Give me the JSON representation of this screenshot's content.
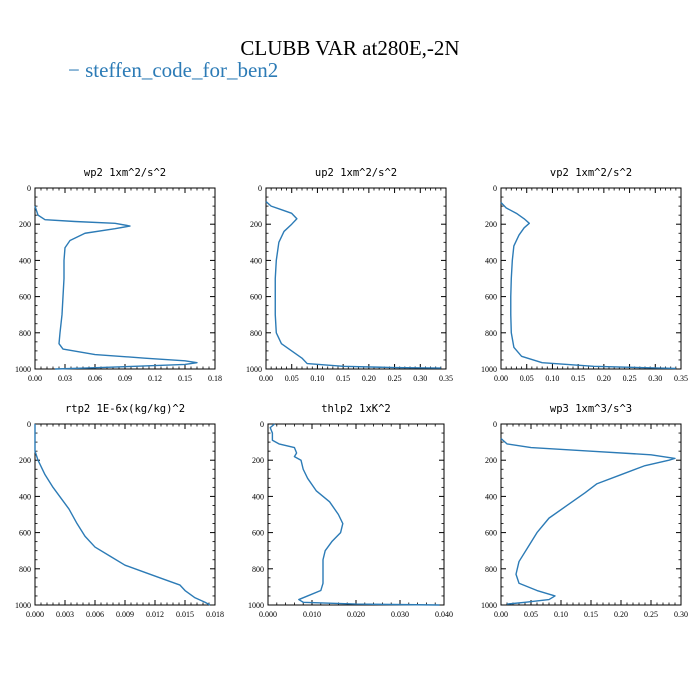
{
  "title": "CLUBB VAR at280E,-2N",
  "legend_label": "− steffen_code_for_ben2",
  "colors": {
    "series": "#2c7bb6",
    "axis": "#000000"
  },
  "chart_data": [
    {
      "type": "line",
      "title": "wp2   1xm^2/s^2",
      "series": [
        {
          "name": "steffen_code_for_ben2"
        }
      ],
      "xlim": [
        0,
        0.18
      ],
      "xticks": [
        "0.00",
        "0.03",
        "0.06",
        "0.09",
        "0.12",
        "0.15",
        "0.18"
      ],
      "ylim": [
        1000,
        0
      ],
      "yticks": [
        "0",
        "200",
        "400",
        "600",
        "800",
        "1000"
      ],
      "points": [
        [
          0.0,
          100
        ],
        [
          0.003,
          150
        ],
        [
          0.01,
          175
        ],
        [
          0.04,
          185
        ],
        [
          0.08,
          195
        ],
        [
          0.095,
          210
        ],
        [
          0.08,
          225
        ],
        [
          0.05,
          250
        ],
        [
          0.035,
          290
        ],
        [
          0.03,
          330
        ],
        [
          0.029,
          400
        ],
        [
          0.029,
          500
        ],
        [
          0.028,
          600
        ],
        [
          0.027,
          700
        ],
        [
          0.025,
          800
        ],
        [
          0.024,
          860
        ],
        [
          0.028,
          890
        ],
        [
          0.06,
          920
        ],
        [
          0.11,
          940
        ],
        [
          0.15,
          955
        ],
        [
          0.162,
          965
        ],
        [
          0.15,
          975
        ],
        [
          0.1,
          985
        ],
        [
          0.05,
          995
        ],
        [
          0.02,
          1000
        ]
      ]
    },
    {
      "type": "line",
      "title": "up2   1xm^2/s^2",
      "series": [
        {
          "name": "steffen_code_for_ben2"
        }
      ],
      "xlim": [
        0,
        0.35
      ],
      "xticks": [
        "0.00",
        "0.05",
        "0.10",
        "0.15",
        "0.20",
        "0.25",
        "0.30",
        "0.35"
      ],
      "ylim": [
        1000,
        0
      ],
      "yticks": [
        "0",
        "200",
        "400",
        "600",
        "800",
        "1000"
      ],
      "points": [
        [
          0.0,
          75
        ],
        [
          0.01,
          100
        ],
        [
          0.03,
          120
        ],
        [
          0.05,
          140
        ],
        [
          0.06,
          170
        ],
        [
          0.05,
          200
        ],
        [
          0.035,
          240
        ],
        [
          0.025,
          300
        ],
        [
          0.02,
          400
        ],
        [
          0.018,
          500
        ],
        [
          0.018,
          600
        ],
        [
          0.018,
          700
        ],
        [
          0.02,
          800
        ],
        [
          0.03,
          860
        ],
        [
          0.05,
          900
        ],
        [
          0.07,
          940
        ],
        [
          0.08,
          970
        ],
        [
          0.15,
          985
        ],
        [
          0.25,
          992
        ],
        [
          0.34,
          995
        ]
      ]
    },
    {
      "type": "line",
      "title": "vp2   1xm^2/s^2",
      "series": [
        {
          "name": "steffen_code_for_ben2"
        }
      ],
      "xlim": [
        0,
        0.35
      ],
      "xticks": [
        "0.00",
        "0.05",
        "0.10",
        "0.15",
        "0.20",
        "0.25",
        "0.30",
        "0.35"
      ],
      "ylim": [
        1000,
        0
      ],
      "yticks": [
        "0",
        "200",
        "400",
        "600",
        "800",
        "1000"
      ],
      "points": [
        [
          0.0,
          80
        ],
        [
          0.01,
          110
        ],
        [
          0.03,
          140
        ],
        [
          0.045,
          170
        ],
        [
          0.055,
          195
        ],
        [
          0.045,
          220
        ],
        [
          0.035,
          260
        ],
        [
          0.025,
          320
        ],
        [
          0.022,
          400
        ],
        [
          0.02,
          500
        ],
        [
          0.019,
          600
        ],
        [
          0.019,
          700
        ],
        [
          0.02,
          800
        ],
        [
          0.025,
          880
        ],
        [
          0.04,
          930
        ],
        [
          0.08,
          965
        ],
        [
          0.18,
          985
        ],
        [
          0.28,
          993
        ],
        [
          0.34,
          997
        ]
      ]
    },
    {
      "type": "line",
      "title": "rtp2   1E-6x(kg/kg)^2",
      "series": [
        {
          "name": "steffen_code_for_ben2"
        }
      ],
      "xlim": [
        0,
        0.018
      ],
      "xticks": [
        "0.000",
        "0.003",
        "0.006",
        "0.009",
        "0.012",
        "0.015",
        "0.018"
      ],
      "ylim": [
        1000,
        0
      ],
      "yticks": [
        "0",
        "200",
        "400",
        "600",
        "800",
        "1000"
      ],
      "points": [
        [
          0.0,
          0
        ],
        [
          0.0,
          150
        ],
        [
          0.0003,
          200
        ],
        [
          0.001,
          280
        ],
        [
          0.0018,
          350
        ],
        [
          0.0026,
          410
        ],
        [
          0.0034,
          470
        ],
        [
          0.0042,
          550
        ],
        [
          0.005,
          620
        ],
        [
          0.006,
          680
        ],
        [
          0.0075,
          730
        ],
        [
          0.009,
          780
        ],
        [
          0.011,
          820
        ],
        [
          0.013,
          860
        ],
        [
          0.0145,
          890
        ],
        [
          0.015,
          920
        ],
        [
          0.016,
          960
        ],
        [
          0.017,
          985
        ],
        [
          0.0175,
          1000
        ]
      ]
    },
    {
      "type": "line",
      "title": "thlp2   1xK^2",
      "series": [
        {
          "name": "steffen_code_for_ben2"
        }
      ],
      "xlim": [
        0,
        0.04
      ],
      "xticks": [
        "0.000",
        "0.010",
        "0.020",
        "0.030",
        "0.040"
      ],
      "ylim": [
        1000,
        0
      ],
      "yticks": [
        "0",
        "200",
        "400",
        "600",
        "800",
        "1000"
      ],
      "points": [
        [
          0.0015,
          0
        ],
        [
          0.0005,
          20
        ],
        [
          0.001,
          50
        ],
        [
          0.001,
          90
        ],
        [
          0.0025,
          110
        ],
        [
          0.006,
          130
        ],
        [
          0.0065,
          160
        ],
        [
          0.006,
          180
        ],
        [
          0.0075,
          200
        ],
        [
          0.008,
          250
        ],
        [
          0.009,
          300
        ],
        [
          0.011,
          370
        ],
        [
          0.014,
          430
        ],
        [
          0.016,
          500
        ],
        [
          0.017,
          550
        ],
        [
          0.0165,
          600
        ],
        [
          0.0145,
          650
        ],
        [
          0.013,
          700
        ],
        [
          0.0125,
          750
        ],
        [
          0.0125,
          800
        ],
        [
          0.0125,
          880
        ],
        [
          0.012,
          920
        ],
        [
          0.009,
          950
        ],
        [
          0.007,
          970
        ],
        [
          0.008,
          985
        ],
        [
          0.02,
          995
        ],
        [
          0.039,
          1000
        ]
      ]
    },
    {
      "type": "line",
      "title": "wp3   1xm^3/s^3",
      "series": [
        {
          "name": "steffen_code_for_ben2"
        }
      ],
      "xlim": [
        0,
        0.3
      ],
      "xticks": [
        "0.00",
        "0.05",
        "0.10",
        "0.15",
        "0.20",
        "0.25",
        "0.30"
      ],
      "ylim": [
        1000,
        0
      ],
      "yticks": [
        "0",
        "200",
        "400",
        "600",
        "800",
        "1000"
      ],
      "points": [
        [
          0.0,
          80
        ],
        [
          0.01,
          110
        ],
        [
          0.05,
          130
        ],
        [
          0.15,
          150
        ],
        [
          0.25,
          170
        ],
        [
          0.29,
          190
        ],
        [
          0.28,
          200
        ],
        [
          0.24,
          230
        ],
        [
          0.2,
          280
        ],
        [
          0.16,
          330
        ],
        [
          0.14,
          380
        ],
        [
          0.11,
          450
        ],
        [
          0.08,
          520
        ],
        [
          0.06,
          600
        ],
        [
          0.045,
          680
        ],
        [
          0.03,
          760
        ],
        [
          0.025,
          830
        ],
        [
          0.03,
          880
        ],
        [
          0.06,
          920
        ],
        [
          0.09,
          950
        ],
        [
          0.08,
          970
        ],
        [
          0.04,
          985
        ],
        [
          0.01,
          995
        ]
      ]
    }
  ]
}
